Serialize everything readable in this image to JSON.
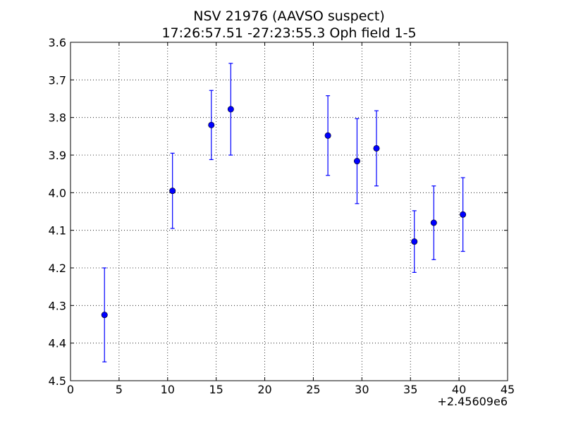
{
  "chart_data": {
    "type": "scatter",
    "title": "NSV 21976 (AAVSO suspect)",
    "subtitle": "17:26:57.51 -27:23:55.3 Oph field 1-5",
    "xlabel": "",
    "ylabel": "",
    "x_offset_label": "+2.45609e6",
    "xlim": [
      0,
      45
    ],
    "ylim": [
      3.6,
      4.5
    ],
    "y_inverted": true,
    "grid": true,
    "x_ticks": [
      0,
      5,
      10,
      15,
      20,
      25,
      30,
      35,
      40,
      45
    ],
    "x_tick_labels": [
      "0",
      "5",
      "10",
      "15",
      "20",
      "25",
      "30",
      "35",
      "40",
      "45"
    ],
    "y_ticks": [
      3.6,
      3.7,
      3.8,
      3.9,
      4.0,
      4.1,
      4.2,
      4.3,
      4.4,
      4.5
    ],
    "y_tick_labels": [
      "3.6",
      "3.7",
      "3.8",
      "3.9",
      "4.0",
      "4.1",
      "4.2",
      "4.3",
      "4.4",
      "4.5"
    ],
    "colors": {
      "points": "#0000ff",
      "grid": "#000000",
      "axes": "#000000"
    },
    "series": [
      {
        "x": [
          3.5,
          10.5,
          14.5,
          16.5,
          26.5,
          29.5,
          31.5,
          35.4,
          37.4,
          40.4
        ],
        "y": [
          4.325,
          3.995,
          3.82,
          3.778,
          3.848,
          3.916,
          3.882,
          4.13,
          4.08,
          4.058
        ],
        "yerr": [
          0.125,
          0.1,
          0.092,
          0.122,
          0.106,
          0.113,
          0.1,
          0.082,
          0.098,
          0.098
        ]
      }
    ]
  }
}
